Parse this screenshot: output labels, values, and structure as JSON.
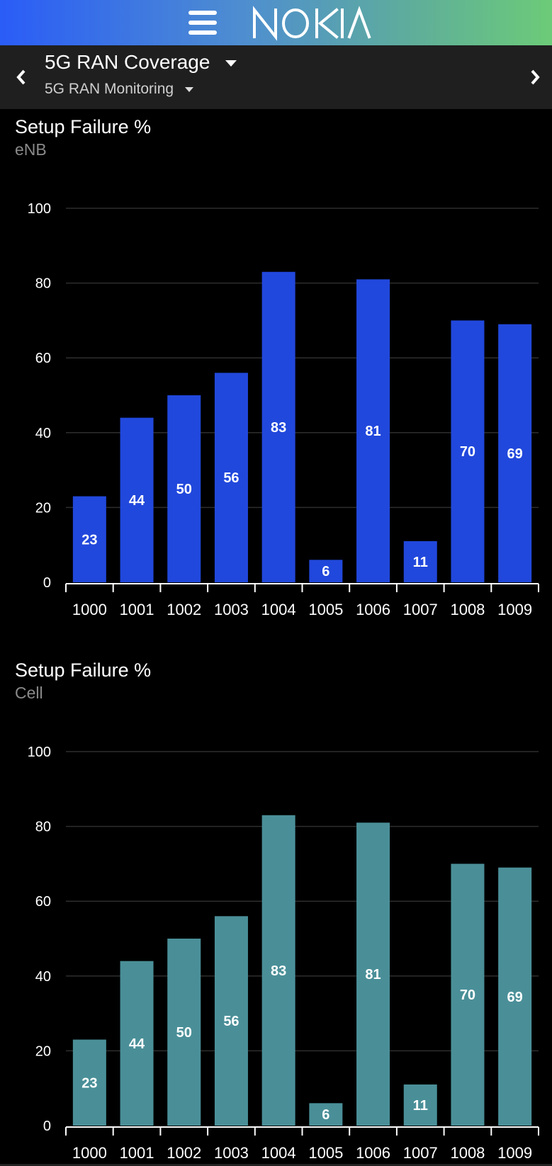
{
  "header": {
    "brand": "NOKIA",
    "menu_icon": "hamburger-menu-icon",
    "gradient": [
      "#2a5cf7",
      "#6ccb78"
    ]
  },
  "subheader": {
    "title": "5G RAN Coverage",
    "subtitle": "5G RAN Monitoring",
    "prev_icon": "chevron-left-icon",
    "next_icon": "chevron-right-icon"
  },
  "panels": [
    {
      "title": "Setup Failure %",
      "subtitle": "eNB",
      "color": "#2148dc"
    },
    {
      "title": "Setup Failure %",
      "subtitle": "Cell",
      "color": "#4a8f98"
    }
  ],
  "chart_data": [
    {
      "type": "bar",
      "title": "Setup Failure %",
      "subtitle": "eNB",
      "categories": [
        "1000",
        "1001",
        "1002",
        "1003",
        "1004",
        "1005",
        "1006",
        "1007",
        "1008",
        "1009"
      ],
      "values": [
        23,
        44,
        50,
        56,
        83,
        6,
        81,
        11,
        70,
        69
      ],
      "yticks": [
        0,
        20,
        40,
        60,
        80,
        100
      ],
      "ylim": [
        0,
        100
      ],
      "grid": true
    },
    {
      "type": "bar",
      "title": "Setup Failure %",
      "subtitle": "Cell",
      "categories": [
        "1000",
        "1001",
        "1002",
        "1003",
        "1004",
        "1005",
        "1006",
        "1007",
        "1008",
        "1009"
      ],
      "values": [
        23,
        44,
        50,
        56,
        83,
        6,
        81,
        11,
        70,
        69
      ],
      "yticks": [
        0,
        20,
        40,
        60,
        80,
        100
      ],
      "ylim": [
        0,
        100
      ],
      "grid": true
    }
  ]
}
